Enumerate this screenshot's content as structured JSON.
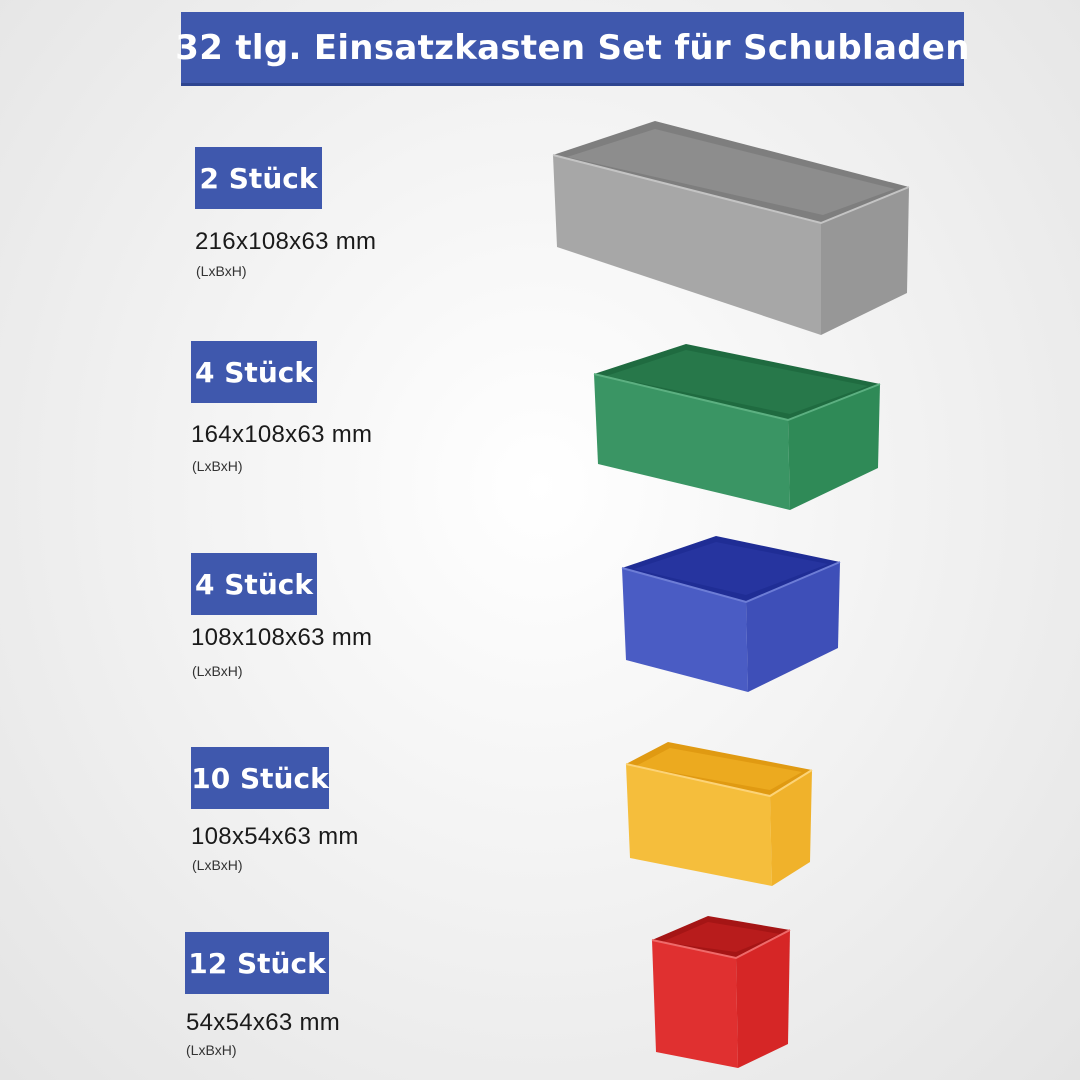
{
  "title": "32 tlg. Einsatzkasten Set für Schubladen",
  "colors": {
    "accent": "#3f58ad",
    "grey": "#9a9a9a",
    "green": "#2f8a57",
    "blue": "#3e4fb8",
    "yellow": "#f3b92e",
    "red": "#dd2a2a"
  },
  "items": [
    {
      "count": "2 Stück",
      "dims": "216x108x63 mm",
      "unit": "(LxBxH)",
      "color_name": "grey"
    },
    {
      "count": "4 Stück",
      "dims": "164x108x63 mm",
      "unit": "(LxBxH)",
      "color_name": "green"
    },
    {
      "count": "4 Stück",
      "dims": "108x108x63 mm",
      "unit": "(LxBxH)",
      "color_name": "blue"
    },
    {
      "count": "10 Stück",
      "dims": "108x54x63 mm",
      "unit": "(LxBxH)",
      "color_name": "yellow"
    },
    {
      "count": "12 Stück",
      "dims": "54x54x63 mm",
      "unit": "(LxBxH)",
      "color_name": "red"
    }
  ]
}
